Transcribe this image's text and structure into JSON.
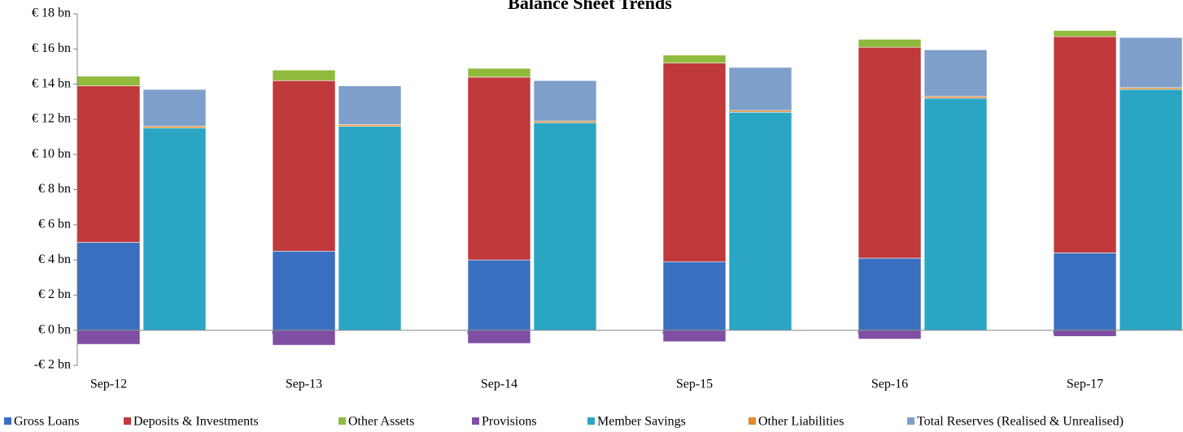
{
  "chart_data": {
    "type": "stacked_bar",
    "title": "Balance Sheet Trends",
    "categories": [
      "Sep-12",
      "Sep-13",
      "Sep-14",
      "Sep-15",
      "Sep-16",
      "Sep-17"
    ],
    "series": [
      {
        "name": "Gross Loans",
        "color": "#3a6fbf",
        "stack": "assets",
        "values": [
          5.0,
          4.5,
          4.0,
          3.9,
          4.1,
          4.4
        ]
      },
      {
        "name": "Deposits & Investments",
        "color": "#c0393b",
        "stack": "assets",
        "values": [
          8.9,
          9.7,
          10.4,
          11.3,
          12.0,
          12.3
        ]
      },
      {
        "name": "Other Assets",
        "color": "#8fba3c",
        "stack": "assets",
        "values": [
          0.55,
          0.6,
          0.5,
          0.45,
          0.45,
          0.35
        ]
      },
      {
        "name": "Provisions",
        "color": "#7e4fa3",
        "stack": "assets",
        "values": [
          -0.8,
          -0.85,
          -0.75,
          -0.65,
          -0.5,
          -0.35
        ]
      },
      {
        "name": "Member Savings",
        "color": "#2aa6c4",
        "stack": "liabilities",
        "values": [
          11.5,
          11.6,
          11.8,
          12.4,
          13.2,
          13.7
        ]
      },
      {
        "name": "Other Liabilities",
        "color": "#e38a2a",
        "stack": "liabilities",
        "values": [
          0.1,
          0.1,
          0.1,
          0.1,
          0.1,
          0.1
        ]
      },
      {
        "name": "Total Reserves (Realised & Unrealised)",
        "color": "#7f9fcb",
        "stack": "liabilities",
        "values": [
          2.1,
          2.2,
          2.3,
          2.45,
          2.65,
          2.85
        ]
      }
    ],
    "ylim": [
      -2,
      18
    ],
    "yticks": [
      {
        "value": -2,
        "label": "-€ 2 bn"
      },
      {
        "value": 0,
        "label": "€ 0 bn"
      },
      {
        "value": 2,
        "label": "€ 2 bn"
      },
      {
        "value": 4,
        "label": "€ 4 bn"
      },
      {
        "value": 6,
        "label": "€ 6 bn"
      },
      {
        "value": 8,
        "label": "€ 8 bn"
      },
      {
        "value": 10,
        "label": "€ 10 bn"
      },
      {
        "value": 12,
        "label": "€ 12 bn"
      },
      {
        "value": 14,
        "label": "€ 14 bn"
      },
      {
        "value": 16,
        "label": "€ 16 bn"
      },
      {
        "value": 18,
        "label": "€ 18 bn"
      }
    ],
    "grid": false,
    "legend": "bottom"
  }
}
